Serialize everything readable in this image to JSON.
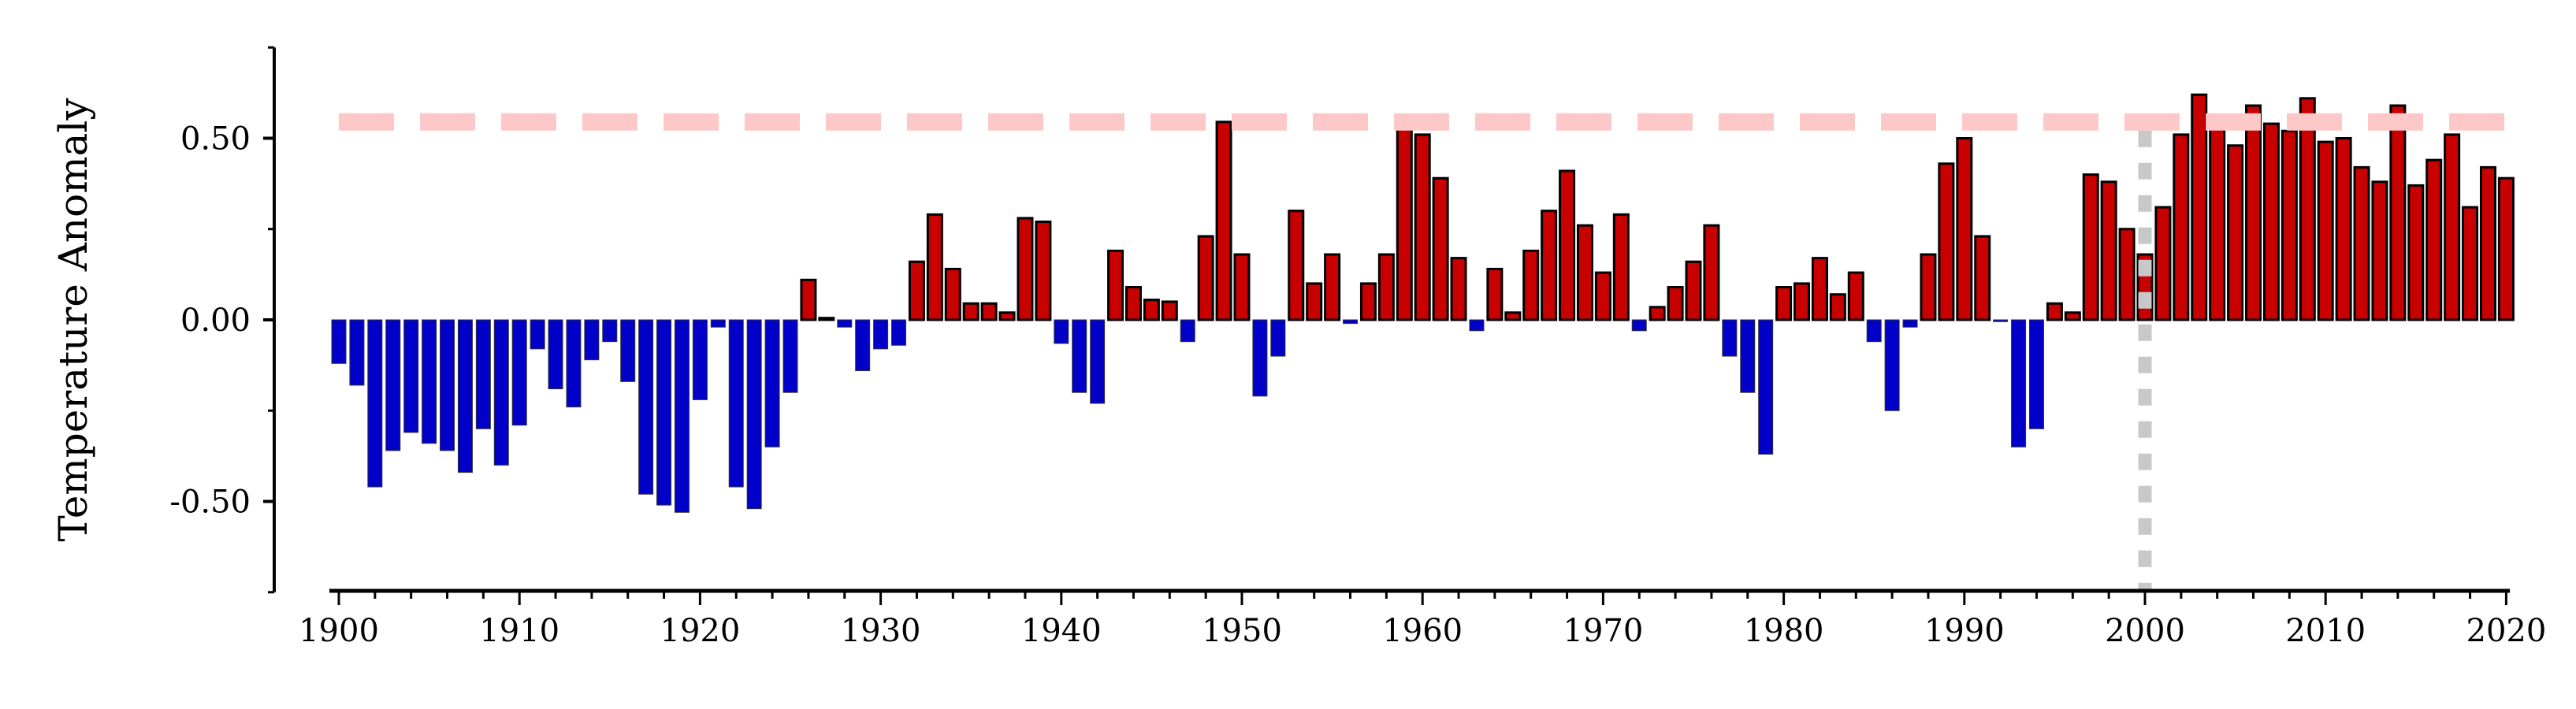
{
  "chart_data": {
    "type": "bar",
    "title": "",
    "xlabel": "",
    "ylabel": "Temperature Anomaly",
    "x_start": 1900,
    "x": [
      1900,
      1901,
      1902,
      1903,
      1904,
      1905,
      1906,
      1907,
      1908,
      1909,
      1910,
      1911,
      1912,
      1913,
      1914,
      1915,
      1916,
      1917,
      1918,
      1919,
      1920,
      1921,
      1922,
      1923,
      1924,
      1925,
      1926,
      1927,
      1928,
      1929,
      1930,
      1931,
      1932,
      1933,
      1934,
      1935,
      1936,
      1937,
      1938,
      1939,
      1940,
      1941,
      1942,
      1943,
      1944,
      1945,
      1946,
      1947,
      1948,
      1949,
      1950,
      1951,
      1952,
      1953,
      1954,
      1955,
      1956,
      1957,
      1958,
      1959,
      1960,
      1961,
      1962,
      1963,
      1964,
      1965,
      1966,
      1967,
      1968,
      1969,
      1970,
      1971,
      1972,
      1973,
      1974,
      1975,
      1976,
      1977,
      1978,
      1979,
      1980,
      1981,
      1982,
      1983,
      1984,
      1985,
      1986,
      1987,
      1988,
      1989,
      1990,
      1991,
      1992,
      1993,
      1994,
      1995,
      1996,
      1997,
      1998,
      1999,
      2000,
      2001,
      2002,
      2003,
      2004,
      2005,
      2006,
      2007,
      2008,
      2009,
      2010,
      2011,
      2012,
      2013,
      2014,
      2015,
      2016,
      2017,
      2018,
      2019,
      2020
    ],
    "values": [
      -0.12,
      -0.18,
      -0.46,
      -0.36,
      -0.31,
      -0.34,
      -0.36,
      -0.42,
      -0.3,
      -0.4,
      -0.29,
      -0.08,
      -0.19,
      -0.24,
      -0.11,
      -0.06,
      -0.17,
      -0.48,
      -0.51,
      -0.53,
      -0.22,
      -0.02,
      -0.46,
      -0.52,
      -0.35,
      -0.2,
      0.11,
      0.005,
      -0.02,
      -0.14,
      -0.08,
      -0.07,
      0.16,
      0.29,
      0.14,
      0.045,
      0.045,
      0.02,
      0.28,
      0.27,
      -0.065,
      -0.2,
      -0.23,
      0.19,
      0.09,
      0.055,
      0.05,
      -0.06,
      0.23,
      0.545,
      0.18,
      -0.21,
      -0.1,
      0.3,
      0.1,
      0.18,
      -0.01,
      0.1,
      0.18,
      0.53,
      0.51,
      0.39,
      0.17,
      -0.03,
      0.14,
      0.02,
      0.19,
      0.3,
      0.41,
      0.26,
      0.13,
      0.29,
      -0.03,
      0.035,
      0.09,
      0.16,
      0.26,
      -0.1,
      -0.2,
      -0.37,
      0.09,
      0.1,
      0.17,
      0.07,
      0.13,
      -0.06,
      -0.25,
      -0.02,
      0.18,
      0.43,
      0.5,
      0.23,
      -0.005,
      -0.35,
      -0.3,
      0.045,
      0.02,
      0.4,
      0.38,
      0.25,
      0.18,
      0.31,
      0.51,
      0.62,
      0.56,
      0.48,
      0.59,
      0.54,
      0.52,
      0.61,
      0.49,
      0.5,
      0.42,
      0.38,
      0.59,
      0.37,
      0.44,
      0.51,
      0.31,
      0.42,
      0.39
    ],
    "ylim": [
      -0.75,
      0.75
    ],
    "xlim": [
      1900,
      2020
    ],
    "y_ticks": [
      {
        "v": 0.5,
        "label": "0.50"
      },
      {
        "v": 0,
        "label": "0.00"
      },
      {
        "v": -0.5,
        "label": "-0.50"
      }
    ],
    "y_minor_ticks": [
      0.75,
      0.25,
      -0.25,
      -0.75
    ],
    "x_ticks": [
      {
        "v": 1900,
        "label": "1900"
      },
      {
        "v": 1910,
        "label": "1910"
      },
      {
        "v": 1920,
        "label": "1920"
      },
      {
        "v": 1930,
        "label": "1930"
      },
      {
        "v": 1940,
        "label": "1940"
      },
      {
        "v": 1950,
        "label": "1950"
      },
      {
        "v": 1960,
        "label": "1960"
      },
      {
        "v": 1970,
        "label": "1970"
      },
      {
        "v": 1980,
        "label": "1980"
      },
      {
        "v": 1990,
        "label": "1990"
      },
      {
        "v": 2000,
        "label": "2000"
      },
      {
        "v": 2010,
        "label": "2010"
      },
      {
        "v": 2020,
        "label": "2020"
      }
    ],
    "threshold_line": {
      "value": 0.545,
      "color": "#ffc8c8",
      "style": "dashed"
    },
    "vertical_line": {
      "x": 2000,
      "color": "#c8c8c8",
      "style": "dotted"
    },
    "colors": {
      "positive": "#c80000",
      "negative": "#0000c8",
      "positive_edge": "#000000"
    },
    "grid": false,
    "legend": "none"
  }
}
